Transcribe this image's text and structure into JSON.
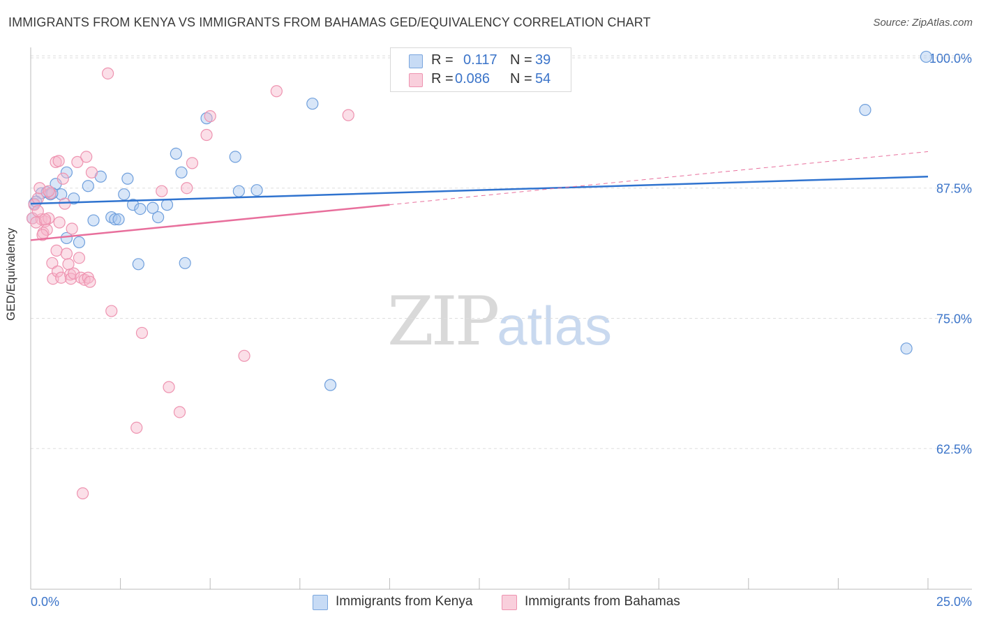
{
  "header": {
    "title": "IMMIGRANTS FROM KENYA VS IMMIGRANTS FROM BAHAMAS GED/EQUIVALENCY CORRELATION CHART",
    "source": "Source: ZipAtlas.com"
  },
  "legend": {
    "kenya": {
      "r_label": "R =",
      "r_value": "0.117",
      "n_label": "N =",
      "n_value": "39"
    },
    "bahamas": {
      "r_label": "R =",
      "r_value": "0.086",
      "n_label": "N =",
      "n_value": "54"
    }
  },
  "bottom_legend": {
    "kenya": "Immigrants from Kenya",
    "bahamas": "Immigrants from Bahamas"
  },
  "watermark": {
    "zip": "ZIP",
    "atlas": "atlas"
  },
  "colors": {
    "kenya_fill": "#a9c7ef",
    "kenya_stroke": "#6f9fdc",
    "kenya_line": "#2f73cf",
    "bahamas_fill": "#f6b9cc",
    "bahamas_stroke": "#ee93b0",
    "bahamas_line": "#e86f9c",
    "grid": "#dddddd",
    "tick_text": "#3b74c9"
  },
  "chart_data": {
    "type": "scatter",
    "title": "IMMIGRANTS FROM KENYA VS IMMIGRANTS FROM BAHAMAS GED/EQUIVALENCY CORRELATION CHART",
    "xlabel": "",
    "ylabel": "GED/Equivalency",
    "xlim": [
      0,
      25
    ],
    "ylim": [
      49,
      101
    ],
    "x_tick_labels": {
      "min": "0.0%",
      "max": "25.0%"
    },
    "y_ticks": [
      62.5,
      75.0,
      87.5,
      100.0
    ],
    "y_tick_labels": [
      "62.5%",
      "75.0%",
      "87.5%",
      "100.0%"
    ],
    "x_minor_ticks": [
      2.5,
      5,
      7.5,
      10,
      12.5,
      15,
      17.5,
      20,
      22.5,
      25
    ],
    "series": [
      {
        "name": "Immigrants from Kenya",
        "color_key": "kenya",
        "points": [
          [
            0.1,
            86.0
          ],
          [
            0.3,
            87.0
          ],
          [
            0.45,
            87.1
          ],
          [
            0.55,
            86.9
          ],
          [
            0.7,
            87.9
          ],
          [
            0.85,
            86.9
          ],
          [
            1.0,
            89.0
          ],
          [
            1.2,
            86.5
          ],
          [
            1.6,
            87.7
          ],
          [
            1.95,
            88.6
          ],
          [
            1.75,
            84.4
          ],
          [
            1.0,
            82.7
          ],
          [
            1.35,
            82.3
          ],
          [
            2.25,
            84.7
          ],
          [
            2.35,
            84.5
          ],
          [
            2.45,
            84.5
          ],
          [
            2.6,
            86.9
          ],
          [
            2.7,
            88.4
          ],
          [
            2.85,
            85.9
          ],
          [
            3.05,
            85.5
          ],
          [
            3.4,
            85.6
          ],
          [
            3.55,
            84.7
          ],
          [
            3.8,
            85.9
          ],
          [
            4.05,
            90.8
          ],
          [
            4.2,
            89.0
          ],
          [
            4.3,
            80.3
          ],
          [
            4.9,
            94.2
          ],
          [
            5.7,
            90.5
          ],
          [
            5.8,
            87.2
          ],
          [
            6.3,
            87.3
          ],
          [
            3.0,
            80.2
          ],
          [
            7.85,
            95.6
          ],
          [
            8.35,
            68.6
          ],
          [
            23.25,
            95.0
          ],
          [
            24.4,
            72.1
          ],
          [
            24.95,
            100.1
          ],
          [
            0.05,
            84.6
          ],
          [
            0.15,
            86.2
          ],
          [
            0.6,
            87.0
          ]
        ]
      },
      {
        "name": "Immigrants from Bahamas",
        "color_key": "bahamas",
        "points": [
          [
            0.05,
            84.6
          ],
          [
            0.1,
            85.9
          ],
          [
            0.2,
            86.5
          ],
          [
            0.25,
            87.5
          ],
          [
            0.3,
            84.5
          ],
          [
            0.35,
            83.2
          ],
          [
            0.4,
            84.3
          ],
          [
            0.45,
            83.5
          ],
          [
            0.5,
            84.6
          ],
          [
            0.55,
            87.0
          ],
          [
            0.6,
            80.3
          ],
          [
            0.62,
            78.8
          ],
          [
            0.7,
            90.0
          ],
          [
            0.72,
            81.5
          ],
          [
            0.75,
            79.5
          ],
          [
            0.78,
            90.1
          ],
          [
            0.8,
            84.2
          ],
          [
            0.85,
            78.9
          ],
          [
            0.9,
            88.4
          ],
          [
            0.95,
            86.0
          ],
          [
            1.0,
            81.2
          ],
          [
            1.05,
            80.2
          ],
          [
            1.1,
            79.2
          ],
          [
            1.12,
            78.8
          ],
          [
            1.15,
            83.6
          ],
          [
            1.2,
            79.3
          ],
          [
            1.3,
            90.0
          ],
          [
            1.35,
            80.8
          ],
          [
            1.4,
            78.9
          ],
          [
            1.45,
            58.2
          ],
          [
            1.5,
            78.7
          ],
          [
            1.55,
            90.5
          ],
          [
            1.6,
            78.9
          ],
          [
            1.65,
            78.5
          ],
          [
            1.7,
            89.0
          ],
          [
            2.15,
            98.5
          ],
          [
            2.25,
            75.7
          ],
          [
            2.95,
            64.5
          ],
          [
            3.1,
            73.6
          ],
          [
            3.65,
            87.2
          ],
          [
            3.85,
            68.4
          ],
          [
            4.15,
            66.0
          ],
          [
            4.35,
            87.5
          ],
          [
            4.5,
            89.9
          ],
          [
            4.9,
            92.6
          ],
          [
            5.0,
            94.4
          ],
          [
            5.95,
            71.4
          ],
          [
            6.85,
            96.8
          ],
          [
            8.85,
            94.5
          ],
          [
            0.15,
            84.2
          ],
          [
            0.2,
            85.3
          ],
          [
            0.4,
            84.5
          ],
          [
            0.5,
            87.2
          ],
          [
            0.33,
            83.0
          ]
        ]
      }
    ],
    "trendlines": [
      {
        "series": "Immigrants from Kenya",
        "x": [
          0,
          25
        ],
        "y": [
          86.0,
          88.6
        ],
        "style": "solid"
      },
      {
        "series": "Immigrants from Bahamas",
        "x": [
          0,
          10
        ],
        "y": [
          82.5,
          85.9
        ],
        "style": "solid"
      },
      {
        "series": "Immigrants from Bahamas",
        "x": [
          10,
          25
        ],
        "y": [
          85.9,
          91.0
        ],
        "style": "dashed"
      }
    ]
  }
}
